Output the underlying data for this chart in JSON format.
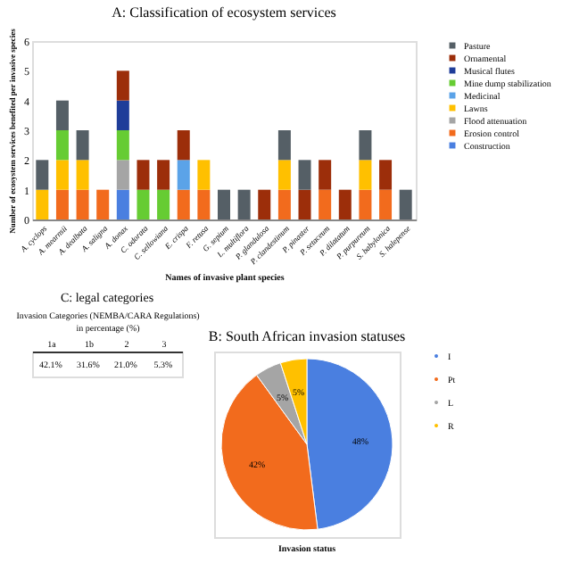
{
  "chart_data": [
    {
      "type": "bar",
      "title": "A: Classification of ecosystem services",
      "xlabel": "Names of invasive plant species",
      "ylabel": "Number of ecosystem services benefited per invasive species",
      "categories": [
        "A. cyclops",
        "A. mearnsii",
        "A. dealbata",
        "A. saligna",
        "A. donax",
        "C. odorata",
        "C. sellowiana",
        "E. crispa",
        "F. retusa",
        "G. sepium",
        "L. multiflora",
        "P. glandulosa",
        "P. clandestinum",
        "P. pinaster",
        "P. setaceum",
        "P. dilatatum",
        "P. purpureum",
        "S. babylonica",
        "S. halepense"
      ],
      "stacked": true,
      "ylim": [
        0,
        6
      ],
      "yticks": [
        0,
        1,
        2,
        3,
        4,
        5,
        6
      ],
      "grid": false,
      "legend": "right",
      "series": [
        {
          "name": "Construction",
          "color": "#4a7fe0",
          "values": [
            0,
            0,
            0,
            0,
            1,
            0,
            0,
            0,
            0,
            0,
            0,
            0,
            0,
            0,
            0,
            0,
            0,
            0,
            0
          ]
        },
        {
          "name": "Erosion control",
          "color": "#f26b1d",
          "values": [
            0,
            1,
            1,
            1,
            0,
            0,
            0,
            1,
            1,
            0,
            0,
            0,
            1,
            0,
            1,
            0,
            1,
            1,
            0
          ]
        },
        {
          "name": "Flood attenuation",
          "color": "#a5a5a5",
          "values": [
            0,
            0,
            0,
            0,
            1,
            0,
            0,
            0,
            0,
            0,
            0,
            0,
            0,
            0,
            0,
            0,
            0,
            0,
            0
          ]
        },
        {
          "name": "Lawns",
          "color": "#ffc000",
          "values": [
            1,
            1,
            1,
            0,
            0,
            0,
            0,
            0,
            1,
            0,
            0,
            0,
            1,
            0,
            0,
            0,
            1,
            0,
            0
          ]
        },
        {
          "name": "Medicinal",
          "color": "#5ba3e8",
          "values": [
            0,
            0,
            0,
            0,
            0,
            0,
            0,
            1,
            0,
            0,
            0,
            0,
            0,
            0,
            0,
            0,
            0,
            0,
            0
          ]
        },
        {
          "name": "Mine dump stabilization",
          "color": "#66cc33",
          "values": [
            0,
            1,
            0,
            0,
            1,
            1,
            1,
            0,
            0,
            0,
            0,
            0,
            0,
            0,
            0,
            0,
            0,
            0,
            0
          ]
        },
        {
          "name": "Musical flutes",
          "color": "#1f3d99",
          "values": [
            0,
            0,
            0,
            0,
            1,
            0,
            0,
            0,
            0,
            0,
            0,
            0,
            0,
            0,
            0,
            0,
            0,
            0,
            0
          ]
        },
        {
          "name": "Ornamental",
          "color": "#9c2e0a",
          "values": [
            0,
            0,
            0,
            0,
            1,
            1,
            1,
            1,
            0,
            0,
            0,
            1,
            0,
            1,
            1,
            1,
            0,
            1,
            0
          ]
        },
        {
          "name": "Pasture",
          "color": "#555f66",
          "values": [
            1,
            1,
            1,
            0,
            0,
            0,
            0,
            0,
            0,
            1,
            1,
            0,
            1,
            1,
            0,
            0,
            1,
            0,
            1
          ]
        }
      ]
    },
    {
      "type": "other",
      "title": "C: legal categories",
      "xlabel": "Invasion Categories (NEMBA/CARA Regulations) in percentage (%)",
      "categories": [
        "1a",
        "1b",
        "2",
        "3"
      ],
      "values": [
        42.1,
        31.6,
        21.0,
        5.3
      ],
      "value_labels": [
        "42.1%",
        "31.6%",
        "21.0%",
        "5.3%"
      ]
    },
    {
      "type": "pie",
      "title": "B: South African invasion statuses",
      "xlabel": "Invasion status",
      "legend": "right",
      "categories": [
        "I",
        "Pt",
        "L",
        "R"
      ],
      "values": [
        48,
        42,
        5,
        5
      ],
      "colors": [
        "#4a7fe0",
        "#f26b1d",
        "#a5a5a5",
        "#ffc000"
      ],
      "value_labels": [
        "48%",
        "42%",
        "5%",
        "5%"
      ]
    }
  ]
}
